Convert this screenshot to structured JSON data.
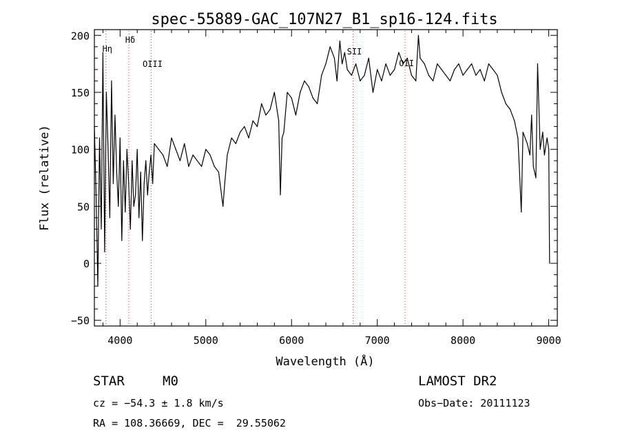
{
  "chart_data": {
    "type": "line",
    "title": "spec-55889-GAC_107N27_B1_sp16-124.fits",
    "xlabel": "Wavelength (Å)",
    "ylabel": "Flux (relative)",
    "xlim": [
      3700,
      9100
    ],
    "ylim": [
      -55,
      205
    ],
    "xticks": [
      "4000",
      "5000",
      "6000",
      "7000",
      "8000",
      "9000"
    ],
    "yticks": [
      "200",
      "150",
      "100",
      "50",
      "0",
      "−50"
    ],
    "line_color": "#000000",
    "marker_line_color": "#cc3333",
    "grid": false,
    "series": [
      {
        "x": [
          3700,
          3720,
          3740,
          3760,
          3780,
          3800,
          3820,
          3840,
          3860,
          3880,
          3900,
          3920,
          3940,
          3960,
          3980,
          4000,
          4020,
          4040,
          4060,
          4080,
          4100,
          4120,
          4140,
          4160,
          4180,
          4200,
          4220,
          4240,
          4260,
          4280,
          4300,
          4320,
          4340,
          4360,
          4380,
          4400,
          4450,
          4500,
          4550,
          4600,
          4650,
          4700,
          4750,
          4800,
          4850,
          4900,
          4950,
          5000,
          5050,
          5100,
          5150,
          5200,
          5220,
          5250,
          5300,
          5350,
          5400,
          5450,
          5500,
          5550,
          5600,
          5650,
          5700,
          5750,
          5800,
          5850,
          5870,
          5890,
          5910,
          5950,
          6000,
          6050,
          6100,
          6150,
          6200,
          6250,
          6300,
          6350,
          6400,
          6450,
          6500,
          6530,
          6563,
          6590,
          6620,
          6650,
          6700,
          6750,
          6800,
          6850,
          6900,
          6950,
          7000,
          7050,
          7100,
          7150,
          7200,
          7250,
          7300,
          7350,
          7400,
          7450,
          7480,
          7500,
          7550,
          7600,
          7650,
          7700,
          7750,
          7800,
          7850,
          7900,
          7950,
          8000,
          8050,
          8100,
          8150,
          8200,
          8250,
          8300,
          8350,
          8400,
          8450,
          8500,
          8550,
          8600,
          8640,
          8660,
          8680,
          8700,
          8750,
          8780,
          8800,
          8820,
          8850,
          8870,
          8900,
          8930,
          8950,
          8980,
          9000,
          9010
        ],
        "values": [
          120,
          60,
          -20,
          110,
          30,
          185,
          10,
          150,
          100,
          40,
          160,
          70,
          130,
          80,
          50,
          110,
          20,
          90,
          45,
          100,
          70,
          30,
          90,
          50,
          60,
          100,
          40,
          80,
          20,
          70,
          90,
          60,
          80,
          95,
          70,
          105,
          100,
          95,
          85,
          110,
          100,
          90,
          105,
          85,
          95,
          90,
          85,
          100,
          95,
          85,
          80,
          50,
          70,
          95,
          110,
          105,
          115,
          120,
          110,
          125,
          120,
          140,
          130,
          135,
          150,
          125,
          60,
          110,
          115,
          150,
          145,
          130,
          150,
          160,
          155,
          145,
          140,
          165,
          175,
          190,
          180,
          160,
          195,
          175,
          185,
          170,
          165,
          175,
          160,
          165,
          180,
          150,
          170,
          160,
          175,
          165,
          170,
          185,
          175,
          180,
          165,
          160,
          200,
          180,
          175,
          165,
          160,
          175,
          170,
          165,
          160,
          170,
          175,
          165,
          170,
          175,
          165,
          170,
          160,
          175,
          170,
          165,
          150,
          140,
          135,
          125,
          110,
          80,
          45,
          115,
          105,
          95,
          130,
          85,
          75,
          175,
          100,
          115,
          95,
          110,
          100,
          0
        ]
      }
    ],
    "line_markers": [
      {
        "label": "Hη",
        "x": 3835
      },
      {
        "label": "Hδ",
        "x": 4102
      },
      {
        "label": "OIII",
        "x": 4363
      },
      {
        "label": "SII",
        "x": 6717
      },
      {
        "label": "OII",
        "x": 7325
      }
    ]
  },
  "info": {
    "object_class": "STAR",
    "subclass": "M0",
    "redshift": "cz = −54.3 ± 1.8 km/s",
    "coords": "RA = 108.36669, DEC =  29.55062",
    "survey": "LAMOST DR2",
    "obs_date": "Obs−Date: 20111123"
  }
}
